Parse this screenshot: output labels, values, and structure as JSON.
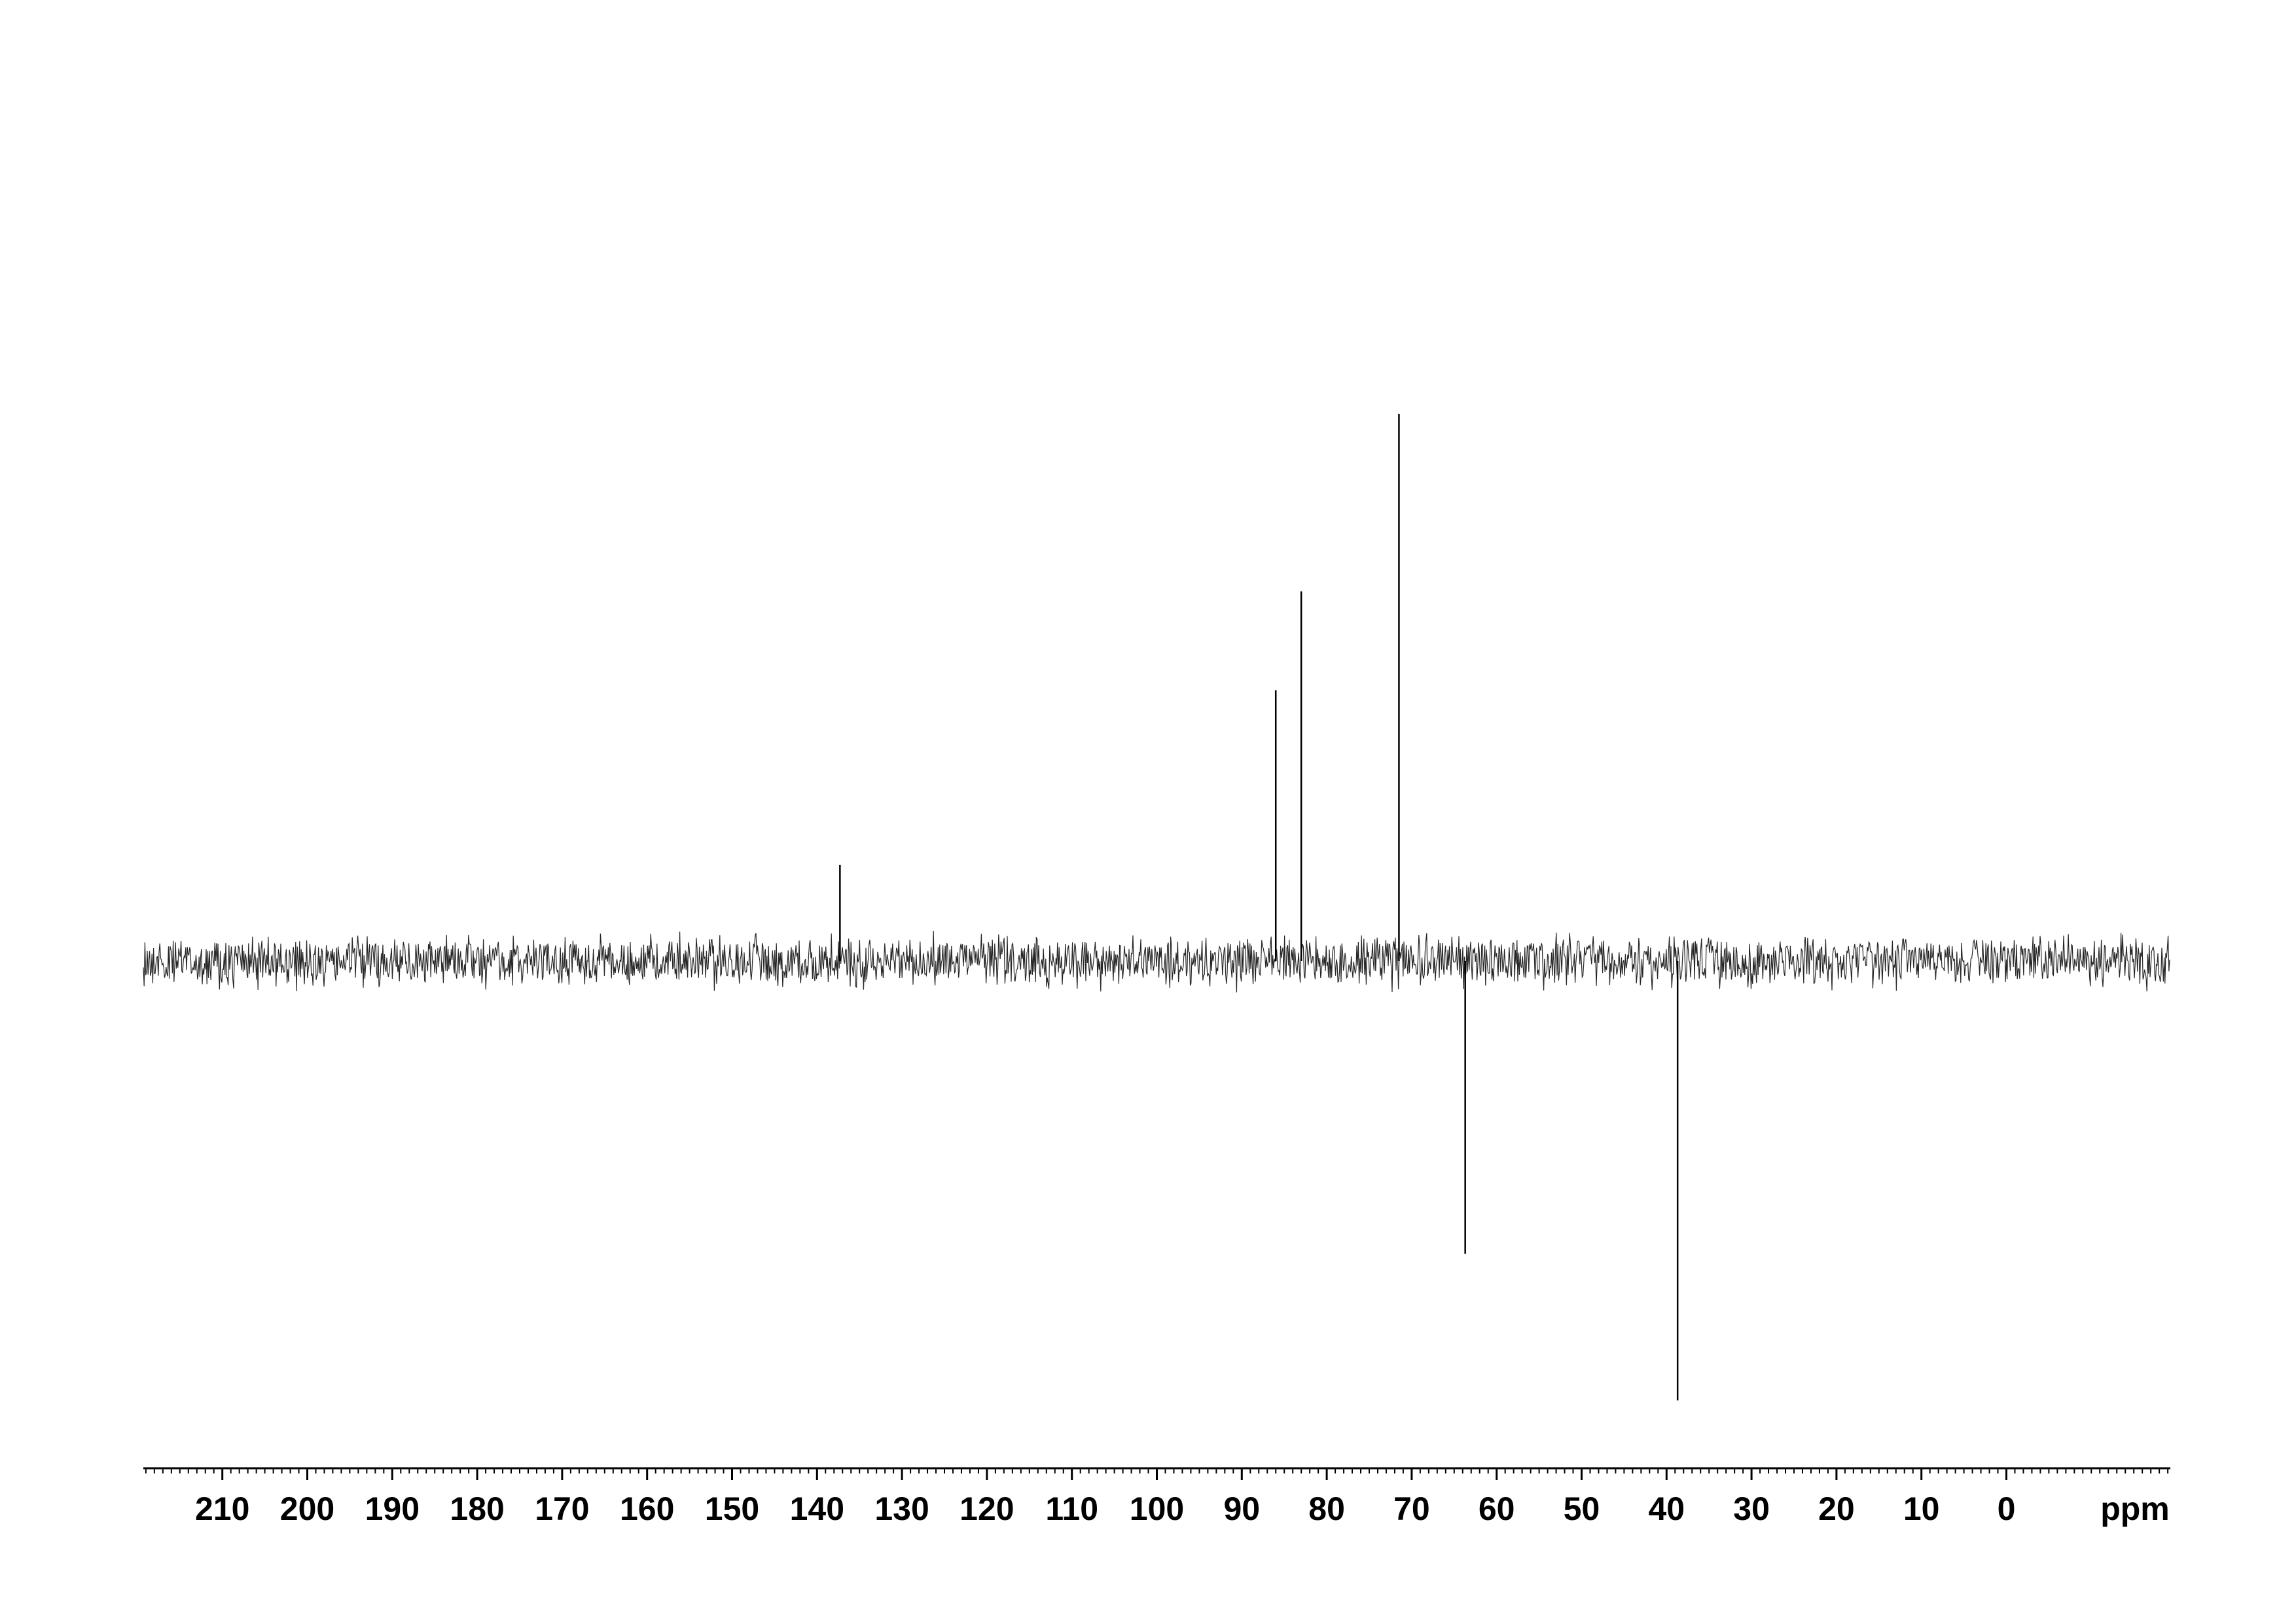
{
  "chart_data": {
    "type": "spectrum",
    "x": [
      137.3,
      86.0,
      83.0,
      71.5,
      63.7,
      38.7
    ],
    "values": [
      17.6,
      49.5,
      67.6,
      100,
      -53.5,
      -80.3
    ],
    "color": "#000000",
    "xlim": [
      219.3,
      -19.3
    ],
    "ylim": [
      -92.7,
      175.7
    ],
    "xticks": [
      210,
      200,
      190,
      180,
      170,
      160,
      150,
      140,
      130,
      120,
      110,
      100,
      90,
      80,
      70,
      60,
      50,
      40,
      30,
      20,
      10,
      0
    ],
    "xminor_step": 1,
    "xlabel": "ppm"
  }
}
